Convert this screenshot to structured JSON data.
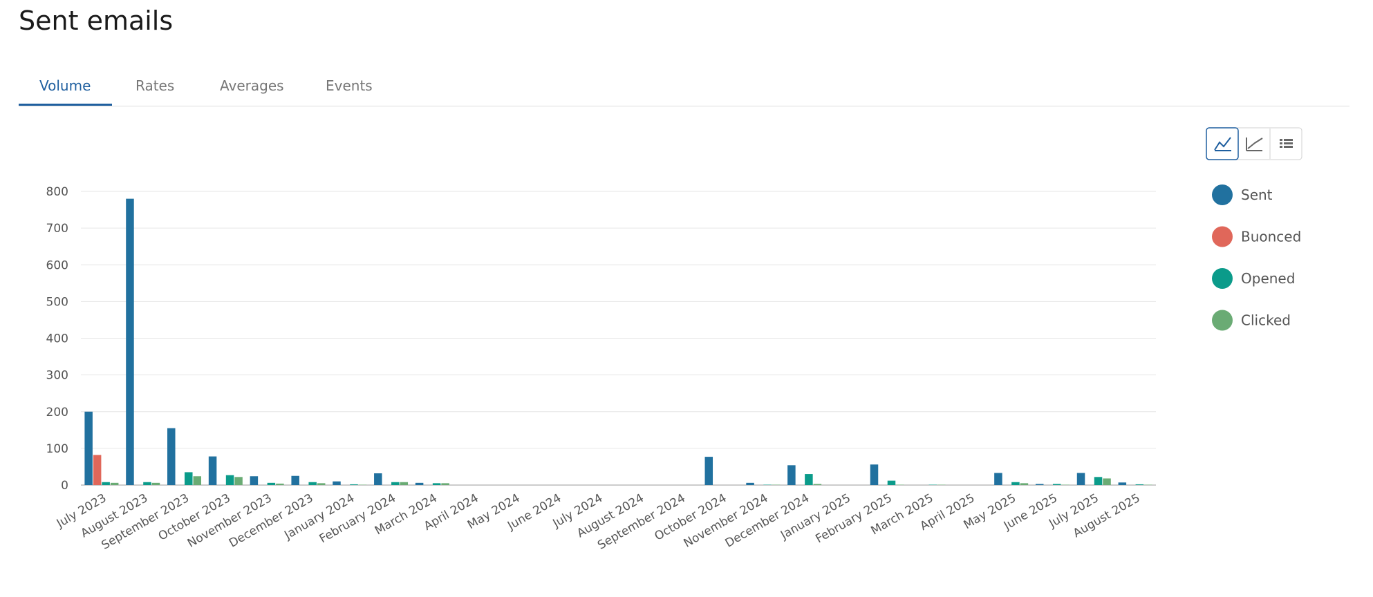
{
  "header": {
    "title": "Sent emails"
  },
  "tabs": [
    "Volume",
    "Rates",
    "Averages",
    "Events"
  ],
  "chart_data": {
    "type": "bar",
    "categories": [
      "July 2023",
      "August 2023",
      "September 2023",
      "October 2023",
      "November 2023",
      "December 2023",
      "January 2024",
      "February 2024",
      "March 2024",
      "April 2024",
      "May 2024",
      "June 2024",
      "July 2024",
      "August 2024",
      "September 2024",
      "October 2024",
      "November 2024",
      "December 2024",
      "January 2025",
      "February 2025",
      "March 2025",
      "April 2025",
      "May 2025",
      "June 2025",
      "July 2025",
      "August 2025"
    ],
    "series": [
      {
        "name": "Sent",
        "color": "#21719f",
        "values": [
          200,
          780,
          155,
          78,
          24,
          25,
          10,
          32,
          6,
          0,
          0,
          0,
          0,
          0,
          0,
          77,
          6,
          54,
          0,
          56,
          0,
          0,
          33,
          3,
          33,
          7
        ]
      },
      {
        "name": "Buonced",
        "color": "#e0675a",
        "values": [
          82,
          0,
          0,
          0,
          0,
          0,
          0,
          0,
          0,
          0,
          0,
          0,
          0,
          0,
          0,
          0,
          0,
          0,
          0,
          0,
          0,
          0,
          0,
          0,
          0,
          0
        ]
      },
      {
        "name": "Opened",
        "color": "#0b9b8a",
        "values": [
          8,
          8,
          35,
          27,
          6,
          8,
          2,
          8,
          5,
          0,
          0,
          0,
          0,
          0,
          0,
          0,
          1,
          30,
          0,
          12,
          1,
          0,
          8,
          3,
          22,
          2
        ]
      },
      {
        "name": "Clicked",
        "color": "#6aab74",
        "values": [
          6,
          6,
          24,
          22,
          4,
          5,
          1,
          8,
          5,
          0,
          0,
          0,
          0,
          0,
          0,
          0,
          1,
          3,
          0,
          1,
          1,
          0,
          5,
          1,
          18,
          1
        ]
      }
    ],
    "ylim": [
      0,
      800
    ],
    "yticks": [
      0,
      100,
      200,
      300,
      400,
      500,
      600,
      700,
      800
    ],
    "grid": true
  }
}
